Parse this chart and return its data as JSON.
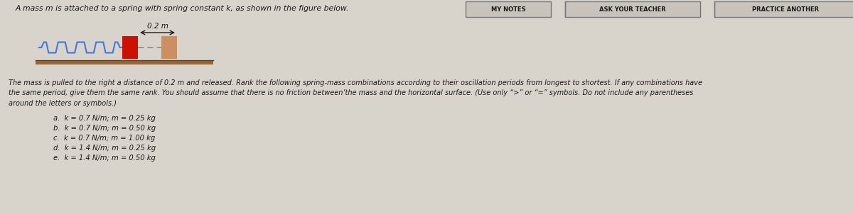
{
  "bg_color": "#d8d4cc",
  "content_bg": "#d8d4cc",
  "header_buttons": [
    "MY NOTES",
    "ASK YOUR TEACHER",
    "PRACTICE ANOTHER"
  ],
  "title_text": "A mass m is attached to a spring with spring constant k, as shown in the figure below.",
  "spring_label": "0.2 m",
  "paragraph_line1": "The mass is pulled to the right a distance of 0.2 m and released. Rank the following spring-mass combinations according to their oscillation periods from longest to shortest. If any combinations have",
  "paragraph_line2": "the same period, give them the same rank. You should assume that there is no friction between’the mass and the horizontal surface. (Use only “>” or “=” symbols. Do not include any parentheses",
  "paragraph_line3": "around the letters or symbols.)",
  "items": [
    "a.  k = 0.7 N/m; m = 0.25 kg",
    "b.  k = 0.7 N/m; m = 0.50 kg",
    "c.  k = 0.7 N/m; m = 1.00 kg",
    "d.  k = 1.4 N/m; m = 0.25 kg",
    "e.  k = 1.4 N/m; m = 0.50 kg"
  ],
  "text_color": "#1a1a1a",
  "button_bg": "#c8c4bc",
  "button_border": "#888888",
  "spring_color": "#4477dd",
  "mass_color_attached": "#cc1100",
  "mass_color_displaced": "#cc8855",
  "floor_color": "#996633",
  "floor_stripe_color": "#cc4400",
  "dashed_color": "#888888",
  "wall_color": "#888888"
}
